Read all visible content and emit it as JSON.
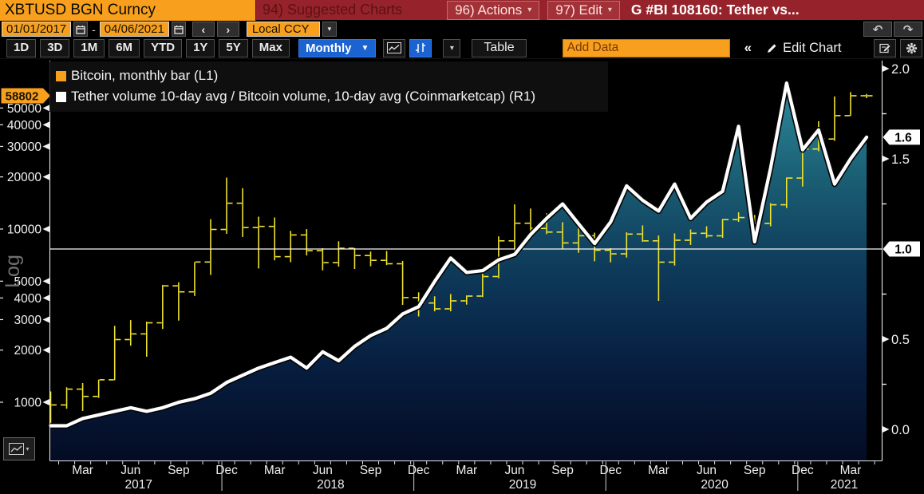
{
  "titlebar": {
    "security": "XBTUSD BGN Curncy",
    "suggested_charts": "94) Suggested Charts",
    "actions_label": "96) Actions",
    "edit_label": "97) Edit",
    "chart_title": "G #BI 108160: Tether vs..."
  },
  "datebar": {
    "start_date": "01/01/2017",
    "separator": "-",
    "end_date": "04/06/2021",
    "currency_mode": "Local CCY"
  },
  "toolbar": {
    "periods": [
      "1D",
      "3D",
      "1M",
      "6M",
      "YTD",
      "1Y",
      "5Y",
      "Max"
    ],
    "frequency": "Monthly",
    "table_label": "Table",
    "add_data_placeholder": "Add Data",
    "collapse_label": "«",
    "edit_chart_label": "Edit Chart"
  },
  "legend": [
    {
      "swatch_color": "#F8A01E",
      "label": "Bitcoin, monthly bar (L1)"
    },
    {
      "swatch_color": "#FFFFFF",
      "label": "Tether volume 10-day avg / Bitcoin volume, 10-day avg (Coinmarketcap) (R1)"
    }
  ],
  "chart_data": {
    "type": "mixed",
    "x_start": "Jan 2017",
    "x_end": "Apr 2021",
    "months_count": 52,
    "x_axis": {
      "month_tick_labels": [
        {
          "i": 2,
          "t": "Mar"
        },
        {
          "i": 5,
          "t": "Jun"
        },
        {
          "i": 8,
          "t": "Sep"
        },
        {
          "i": 11,
          "t": "Dec"
        },
        {
          "i": 14,
          "t": "Mar"
        },
        {
          "i": 17,
          "t": "Jun"
        },
        {
          "i": 20,
          "t": "Sep"
        },
        {
          "i": 23,
          "t": "Dec"
        },
        {
          "i": 26,
          "t": "Mar"
        },
        {
          "i": 29,
          "t": "Jun"
        },
        {
          "i": 32,
          "t": "Sep"
        },
        {
          "i": 35,
          "t": "Dec"
        },
        {
          "i": 38,
          "t": "Mar"
        },
        {
          "i": 41,
          "t": "Jun"
        },
        {
          "i": 44,
          "t": "Sep"
        },
        {
          "i": 47,
          "t": "Dec"
        },
        {
          "i": 50,
          "t": "Mar"
        }
      ],
      "year_labels": [
        {
          "i": 5.5,
          "t": "2017"
        },
        {
          "i": 17.5,
          "t": "2018"
        },
        {
          "i": 29.5,
          "t": "2019"
        },
        {
          "i": 41.5,
          "t": "2020"
        },
        {
          "i": 49.6,
          "t": "2021"
        }
      ],
      "year_separator_indices": [
        11,
        23,
        35,
        47
      ]
    },
    "left_axis": {
      "scale": "log",
      "label": "Log",
      "ticks": [
        50000,
        40000,
        30000,
        20000,
        10000,
        5000,
        4000,
        3000,
        2000,
        1000
      ],
      "badge": {
        "label": "58802",
        "value": 58802,
        "color": "#F8A01E"
      }
    },
    "right_axis": {
      "scale": "linear",
      "range": [
        0.0,
        2.0
      ],
      "major_ticks": [
        {
          "label": "2.0",
          "value": 2.0
        },
        {
          "label": "1.5",
          "value": 1.5
        },
        {
          "label": "0.5",
          "value": 0.5
        },
        {
          "label": "0.0",
          "value": 0.0
        }
      ],
      "minor_ticks": [
        1.75,
        1.25,
        0.75,
        0.25
      ],
      "badges": [
        {
          "label": "1.6",
          "value": 1.62
        },
        {
          "label": "1.0",
          "value": 1.0
        }
      ]
    },
    "reference_line": 1.0,
    "series": [
      {
        "name": "Bitcoin, monthly bar",
        "axis": "L1",
        "type": "ohlc_bar",
        "color": "#F0E32F",
        "last_value": 58802,
        "ohlc": [
          [
            998,
            1154,
            752,
            965
          ],
          [
            965,
            1220,
            918,
            1190
          ],
          [
            1190,
            1290,
            891,
            1080
          ],
          [
            1080,
            1350,
            1060,
            1348
          ],
          [
            1348,
            2760,
            1340,
            2300
          ],
          [
            2300,
            2980,
            2120,
            2480
          ],
          [
            2480,
            2920,
            1830,
            2875
          ],
          [
            2875,
            4765,
            2650,
            4700
          ],
          [
            4700,
            4930,
            2960,
            4340
          ],
          [
            4340,
            6460,
            4110,
            6450
          ],
          [
            6450,
            11400,
            5430,
            9950
          ],
          [
            9950,
            19800,
            9380,
            14100
          ],
          [
            14100,
            17200,
            9000,
            10200
          ],
          [
            10200,
            11790,
            5920,
            10360
          ],
          [
            10360,
            11660,
            6600,
            6930
          ],
          [
            6930,
            9760,
            6430,
            9240
          ],
          [
            9240,
            9990,
            7040,
            7500
          ],
          [
            7500,
            7750,
            5780,
            6400
          ],
          [
            6400,
            8500,
            6070,
            7740
          ],
          [
            7740,
            7770,
            5880,
            7030
          ],
          [
            7030,
            7410,
            6100,
            6600
          ],
          [
            6600,
            7470,
            6200,
            6300
          ],
          [
            6300,
            6550,
            3650,
            4020
          ],
          [
            4020,
            4310,
            3130,
            3740
          ],
          [
            3740,
            4090,
            3350,
            3460
          ],
          [
            3460,
            4210,
            3350,
            3850
          ],
          [
            3850,
            4140,
            3660,
            4100
          ],
          [
            4100,
            5620,
            4050,
            5320
          ],
          [
            5320,
            9070,
            5200,
            8550
          ],
          [
            8550,
            13880,
            7450,
            10800
          ],
          [
            10800,
            13130,
            9080,
            10080
          ],
          [
            10080,
            12320,
            9350,
            9600
          ],
          [
            9600,
            10950,
            7700,
            8310
          ],
          [
            8310,
            10350,
            7300,
            9150
          ],
          [
            9150,
            9520,
            6520,
            7550
          ],
          [
            7550,
            7750,
            6430,
            7190
          ],
          [
            7190,
            9570,
            6850,
            9350
          ],
          [
            9350,
            10500,
            8440,
            8550
          ],
          [
            8550,
            9180,
            3850,
            6440
          ],
          [
            6440,
            9440,
            6160,
            8620
          ],
          [
            8620,
            9950,
            8100,
            9450
          ],
          [
            9450,
            10380,
            8900,
            9140
          ],
          [
            9140,
            11440,
            8900,
            11330
          ],
          [
            11330,
            12480,
            11000,
            11650
          ],
          [
            11650,
            12050,
            9850,
            10780
          ],
          [
            10780,
            14100,
            10380,
            13800
          ],
          [
            13800,
            19860,
            13200,
            19700
          ],
          [
            19700,
            29300,
            17600,
            29000
          ],
          [
            29000,
            41950,
            28130,
            33100
          ],
          [
            33100,
            58350,
            32300,
            45160
          ],
          [
            45160,
            61780,
            45000,
            58800
          ],
          [
            58800,
            60250,
            57000,
            58802
          ]
        ]
      },
      {
        "name": "Tether volume 10-day avg / Bitcoin volume, 10-day avg (Coinmarketcap)",
        "axis": "R1",
        "type": "area_line",
        "color": "#FFFFFF",
        "last_value": 1.6,
        "values": [
          0.02,
          0.02,
          0.06,
          0.08,
          0.1,
          0.12,
          0.1,
          0.12,
          0.15,
          0.17,
          0.2,
          0.26,
          0.3,
          0.34,
          0.37,
          0.4,
          0.34,
          0.43,
          0.38,
          0.46,
          0.52,
          0.56,
          0.64,
          0.68,
          0.82,
          0.95,
          0.87,
          0.88,
          0.94,
          0.97,
          1.08,
          1.17,
          1.25,
          1.14,
          1.03,
          1.15,
          1.35,
          1.27,
          1.21,
          1.36,
          1.17,
          1.26,
          1.32,
          1.68,
          1.04,
          1.45,
          1.92,
          1.55,
          1.66,
          1.36,
          1.5,
          1.62
        ]
      }
    ]
  }
}
